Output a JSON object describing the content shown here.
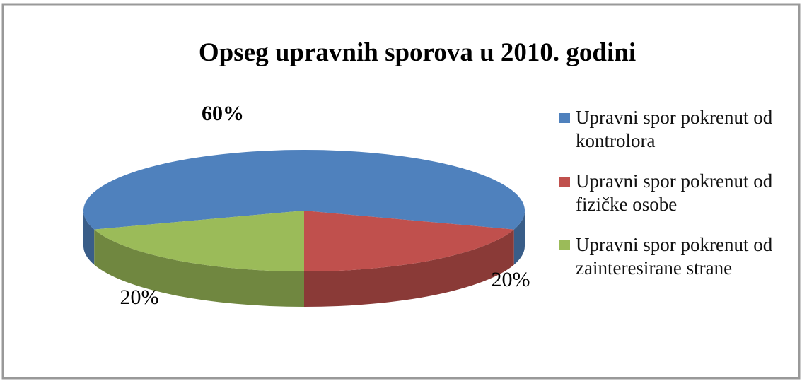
{
  "chart_data": {
    "type": "pie",
    "title": "Opseg upravnih sporova u 2010. godini",
    "categories": [
      "Upravni spor pokrenut od kontrolora",
      "Upravni spor pokrenut od fizičke osobe",
      "Upravni spor pokrenut od zainteresirane strane"
    ],
    "values": [
      60,
      20,
      20
    ],
    "value_labels": [
      "60%",
      "20%",
      "20%"
    ],
    "colors": [
      "#4f81bd",
      "#c0504d",
      "#9bbb59"
    ],
    "legend": "right"
  }
}
